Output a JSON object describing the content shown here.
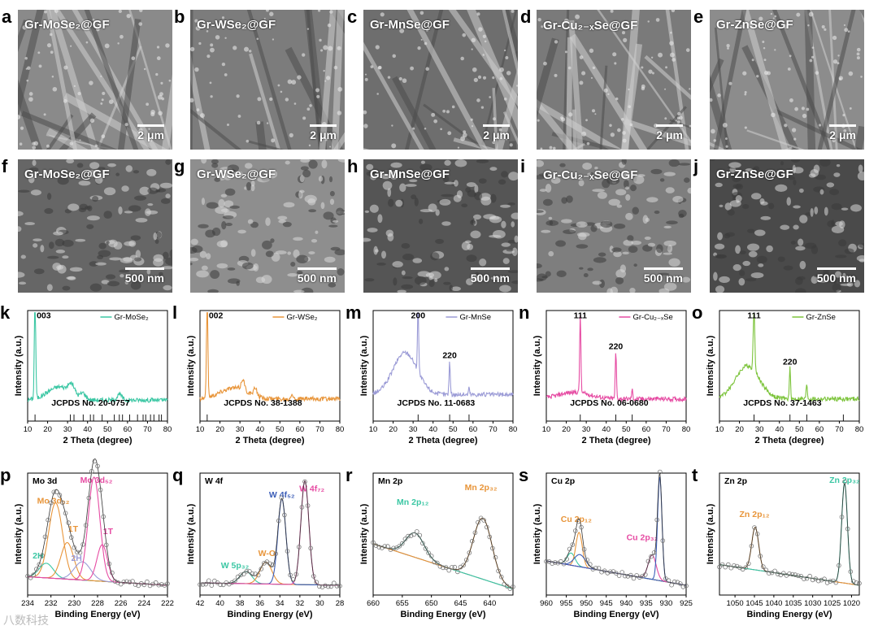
{
  "watermark": "八数科技",
  "sem_row1": [
    {
      "letter": "a",
      "title": "Gr-MoSe₂@GF",
      "scale": "2 μm",
      "tone": "#8a8a8a"
    },
    {
      "letter": "b",
      "title": "Gr-WSe₂@GF",
      "scale": "2 μm",
      "tone": "#7c7c7c"
    },
    {
      "letter": "c",
      "title": "Gr-MnSe@GF",
      "scale": "2 μm",
      "tone": "#6e6e6e"
    },
    {
      "letter": "d",
      "title": "Gr-Cu₂₋ₓSe@GF",
      "scale": "2 μm",
      "tone": "#7a7a7a"
    },
    {
      "letter": "e",
      "title": "Gr-ZnSe@GF",
      "scale": "2 μm",
      "tone": "#8c8c8c"
    }
  ],
  "sem_row2": [
    {
      "letter": "f",
      "title": "Gr-MoSe₂@GF",
      "scale": "500 nm",
      "tone": "#666666"
    },
    {
      "letter": "g",
      "title": "Gr-WSe₂@GF",
      "scale": "500 nm",
      "tone": "#8e8e8e"
    },
    {
      "letter": "h",
      "title": "Gr-MnSe@GF",
      "scale": "500 nm",
      "tone": "#555555"
    },
    {
      "letter": "i",
      "title": "Gr-Cu₂₋ₓSe@GF",
      "scale": "500 nm",
      "tone": "#7e7e7e"
    },
    {
      "letter": "j",
      "title": "Gr-ZnSe@GF",
      "scale": "500 nm",
      "tone": "#4a4a4a"
    }
  ],
  "chart_data": [
    {
      "letter": "k",
      "type": "line",
      "legend": "Gr-MoSe₂",
      "color": "#3cc7a4",
      "xlabel": "2 Theta (degree)",
      "ylabel": "Intensity (a.u.)",
      "xlim": [
        10,
        80
      ],
      "xticks": [
        10,
        20,
        30,
        40,
        50,
        60,
        70,
        80
      ],
      "jcpds": "JCPDS  No. 20-0757",
      "peaks": [
        {
          "x": 13.7,
          "h": 0.92,
          "w": 0.35,
          "label": "003"
        },
        {
          "x": 32,
          "h": 0.08,
          "w": 1.5
        },
        {
          "x": 37.8,
          "h": 0.05,
          "w": 1.2
        },
        {
          "x": 56,
          "h": 0.05,
          "w": 1.2
        }
      ],
      "humps": [
        {
          "x": 26,
          "h": 0.12,
          "w": 6
        }
      ],
      "base": 0.07,
      "sticks": [
        13.7,
        31.4,
        33.2,
        37.8,
        41.4,
        43,
        47.3,
        53.4,
        55.9,
        57.5,
        61.1,
        65,
        67.8,
        69.1,
        71.5,
        73.2,
        75.8,
        77
      ]
    },
    {
      "letter": "l",
      "type": "line",
      "legend": "Gr-WSe₂",
      "color": "#e8953a",
      "xlabel": "2 Theta (degree)",
      "ylabel": "Intensity (a.u.)",
      "xlim": [
        10,
        80
      ],
      "xticks": [
        10,
        20,
        30,
        40,
        50,
        60,
        70,
        80
      ],
      "jcpds": "JCPDS  No. 38-1388",
      "peaks": [
        {
          "x": 13.6,
          "h": 0.9,
          "w": 0.35,
          "label": "002"
        },
        {
          "x": 31.5,
          "h": 0.1,
          "w": 0.8
        },
        {
          "x": 37.8,
          "h": 0.07,
          "w": 0.8
        },
        {
          "x": 56,
          "h": 0.05,
          "w": 0.6
        }
      ],
      "humps": [
        {
          "x": 27,
          "h": 0.1,
          "w": 7
        }
      ],
      "base": 0.08,
      "sticks": [
        13.6
      ]
    },
    {
      "letter": "m",
      "type": "line",
      "legend": "Gr-MnSe",
      "color": "#9b9bd6",
      "xlabel": "2 Theta (degree)",
      "ylabel": "Intensity (a.u.)",
      "xlim": [
        10,
        80
      ],
      "xticks": [
        10,
        20,
        30,
        40,
        50,
        60,
        70,
        80
      ],
      "jcpds": "JCPDS  No. 11-0683",
      "peaks": [
        {
          "x": 32.5,
          "h": 0.62,
          "w": 0.3,
          "label": "200"
        },
        {
          "x": 48.3,
          "h": 0.3,
          "w": 0.3,
          "label": "220"
        },
        {
          "x": 58,
          "h": 0.06,
          "w": 0.3
        }
      ],
      "humps": [
        {
          "x": 26,
          "h": 0.38,
          "w": 6
        }
      ],
      "base": 0.12,
      "sticks": [
        32.5,
        48.3,
        58
      ]
    },
    {
      "letter": "n",
      "type": "line",
      "legend": "Gr-Cu₂₋ₓSe",
      "color": "#e64ca3",
      "xlabel": "2 Theta (degree)",
      "ylabel": "Intensity (a.u.)",
      "xlim": [
        10,
        80
      ],
      "xticks": [
        10,
        20,
        30,
        40,
        50,
        60,
        70,
        80
      ],
      "jcpds": "JCPDS  No. 06-0680",
      "peaks": [
        {
          "x": 27,
          "h": 0.72,
          "w": 0.3,
          "label": "111"
        },
        {
          "x": 44.8,
          "h": 0.42,
          "w": 0.3,
          "label": "220"
        },
        {
          "x": 53,
          "h": 0.08,
          "w": 0.3
        }
      ],
      "humps": [
        {
          "x": 24,
          "h": 0.06,
          "w": 8
        }
      ],
      "base": 0.08,
      "sticks": [
        27,
        44.8,
        53
      ]
    },
    {
      "letter": "o",
      "type": "line",
      "legend": "Gr-ZnSe",
      "color": "#7dc43c",
      "xlabel": "2 Theta (degree)",
      "ylabel": "Intensity (a.u.)",
      "xlim": [
        10,
        80
      ],
      "xticks": [
        10,
        20,
        30,
        40,
        50,
        60,
        70,
        80
      ],
      "jcpds": "JCPDS  No. 37-1463",
      "peaks": [
        {
          "x": 27.3,
          "h": 0.55,
          "w": 0.4,
          "label": "111"
        },
        {
          "x": 45.3,
          "h": 0.28,
          "w": 0.3,
          "label": "220"
        },
        {
          "x": 53.7,
          "h": 0.14,
          "w": 0.3
        }
      ],
      "humps": [
        {
          "x": 24,
          "h": 0.3,
          "w": 6
        }
      ],
      "base": 0.08,
      "sticks": [
        27.3,
        45.3,
        53.7,
        72
      ]
    },
    {
      "letter": "p",
      "type": "line",
      "title": "Mo 3d",
      "xlabel": "Binding Energy (eV)",
      "ylabel": "Intensity (a.u.)",
      "reverse": true,
      "xlim": [
        222,
        234
      ],
      "xticks": [
        234,
        232,
        230,
        228,
        226,
        224,
        222
      ],
      "line_color": "#000000",
      "background": {
        "from": 0.15,
        "to": 0.08
      },
      "components": [
        {
          "x": 231.6,
          "h": 0.62,
          "w": 0.6,
          "color": "#e8953a",
          "label": "Mo 3d₃₂",
          "lx": 231.8,
          "ly": 0.75
        },
        {
          "x": 232.4,
          "h": 0.12,
          "w": 0.6,
          "color": "#3cc7a4",
          "label": "2H",
          "lx": 233.1,
          "ly": 0.3
        },
        {
          "x": 230.6,
          "h": 0.3,
          "w": 0.55,
          "color": "#e8953a",
          "label": "1T",
          "lx": 230.1,
          "ly": 0.52
        },
        {
          "x": 229.3,
          "h": 0.15,
          "w": 0.7,
          "color": "#9b9bd6",
          "label": "2H",
          "lx": 229.8,
          "ly": 0.28
        },
        {
          "x": 228.3,
          "h": 0.85,
          "w": 0.5,
          "color": "#e64ca3",
          "label": "Mo 3d₅₂",
          "lx": 228.1,
          "ly": 0.92
        },
        {
          "x": 227.6,
          "h": 0.3,
          "w": 0.45,
          "color": "#e64ca3",
          "label": "1T",
          "lx": 227.1,
          "ly": 0.5
        }
      ]
    },
    {
      "letter": "q",
      "type": "line",
      "title": "W 4f",
      "xlabel": "Binding Energy (eV)",
      "ylabel": "Intensity (a.u.)",
      "reverse": true,
      "xlim": [
        28,
        42
      ],
      "xticks": [
        42,
        40,
        38,
        36,
        34,
        32,
        30,
        28
      ],
      "line_color": "#000000",
      "background": {
        "from": 0.1,
        "to": 0.08
      },
      "components": [
        {
          "x": 37.4,
          "h": 0.1,
          "w": 0.6,
          "color": "#3cc7a4",
          "label": "W 5p₃₂",
          "lx": 38.5,
          "ly": 0.22
        },
        {
          "x": 35.4,
          "h": 0.18,
          "w": 0.6,
          "color": "#e8953a",
          "label": "W-O",
          "lx": 35.3,
          "ly": 0.32
        },
        {
          "x": 33.8,
          "h": 0.7,
          "w": 0.4,
          "color": "#3d5fb8",
          "label": "W 4f₅₂",
          "lx": 33.8,
          "ly": 0.8
        },
        {
          "x": 31.5,
          "h": 0.85,
          "w": 0.4,
          "color": "#e64ca3",
          "label": "W 4f₇₂",
          "lx": 30.8,
          "ly": 0.85
        }
      ]
    },
    {
      "letter": "r",
      "type": "line",
      "title": "Mn 2p",
      "xlabel": "Binding Energy (eV)",
      "ylabel": "Intensity (a.u.)",
      "reverse": true,
      "xlim": [
        636,
        660
      ],
      "xticks": [
        660,
        655,
        650,
        645,
        640
      ],
      "line_color": "#000000",
      "background": {
        "from": 0.42,
        "to": 0.05
      },
      "components": [
        {
          "x": 652.8,
          "h": 0.2,
          "w": 1.6,
          "color": "#3cc7a4",
          "label": "Mn 2p₁₂",
          "lx": 653.2,
          "ly": 0.74
        },
        {
          "x": 641.2,
          "h": 0.5,
          "w": 1.6,
          "color": "#e8953a",
          "label": "Mn 2p₃₂",
          "lx": 641.5,
          "ly": 0.86
        }
      ]
    },
    {
      "letter": "s",
      "type": "line",
      "title": "Cu 2p",
      "xlabel": "Binding Energy (eV)",
      "ylabel": "Intensity (a.u.)",
      "reverse": true,
      "xlim": [
        925,
        960
      ],
      "xticks": [
        960,
        955,
        950,
        945,
        940,
        935,
        930,
        925
      ],
      "line_color": "#000000",
      "background": {
        "from": 0.28,
        "to": 0.08
      },
      "components": [
        {
          "x": 953.8,
          "h": 0.1,
          "w": 1,
          "color": "#3cc7a4"
        },
        {
          "x": 951.8,
          "h": 0.28,
          "w": 0.8,
          "color": "#e8953a",
          "label": "Cu 2p₁₂",
          "lx": 952.5,
          "ly": 0.6
        },
        {
          "x": 951.6,
          "h": 0.1,
          "w": 1.4,
          "color": "#3d5fb8"
        },
        {
          "x": 933.5,
          "h": 0.2,
          "w": 1,
          "color": "#e64ca3",
          "label": "Cu 2p₃₂",
          "lx": 936,
          "ly": 0.45
        },
        {
          "x": 931.6,
          "h": 0.85,
          "w": 0.55,
          "color": "#3d5fb8"
        }
      ]
    },
    {
      "letter": "t",
      "type": "line",
      "title": "Zn 2p",
      "xlabel": "Binding Energy (eV)",
      "ylabel": "Intensity (a.u.)",
      "reverse": true,
      "xlim": [
        1018,
        1054
      ],
      "xticks": [
        1050,
        1045,
        1040,
        1035,
        1030,
        1025,
        1020
      ],
      "line_color": "#000000",
      "background": {
        "from": 0.25,
        "to": 0.08
      },
      "components": [
        {
          "x": 1044.8,
          "h": 0.35,
          "w": 0.9,
          "color": "#e8953a",
          "label": "Zn 2p₁₂",
          "lx": 1045,
          "ly": 0.64
        },
        {
          "x": 1021.8,
          "h": 0.82,
          "w": 0.75,
          "color": "#3cc7a4",
          "label": "Zn 2p₃₂",
          "lx": 1021.8,
          "ly": 0.92
        }
      ]
    }
  ]
}
